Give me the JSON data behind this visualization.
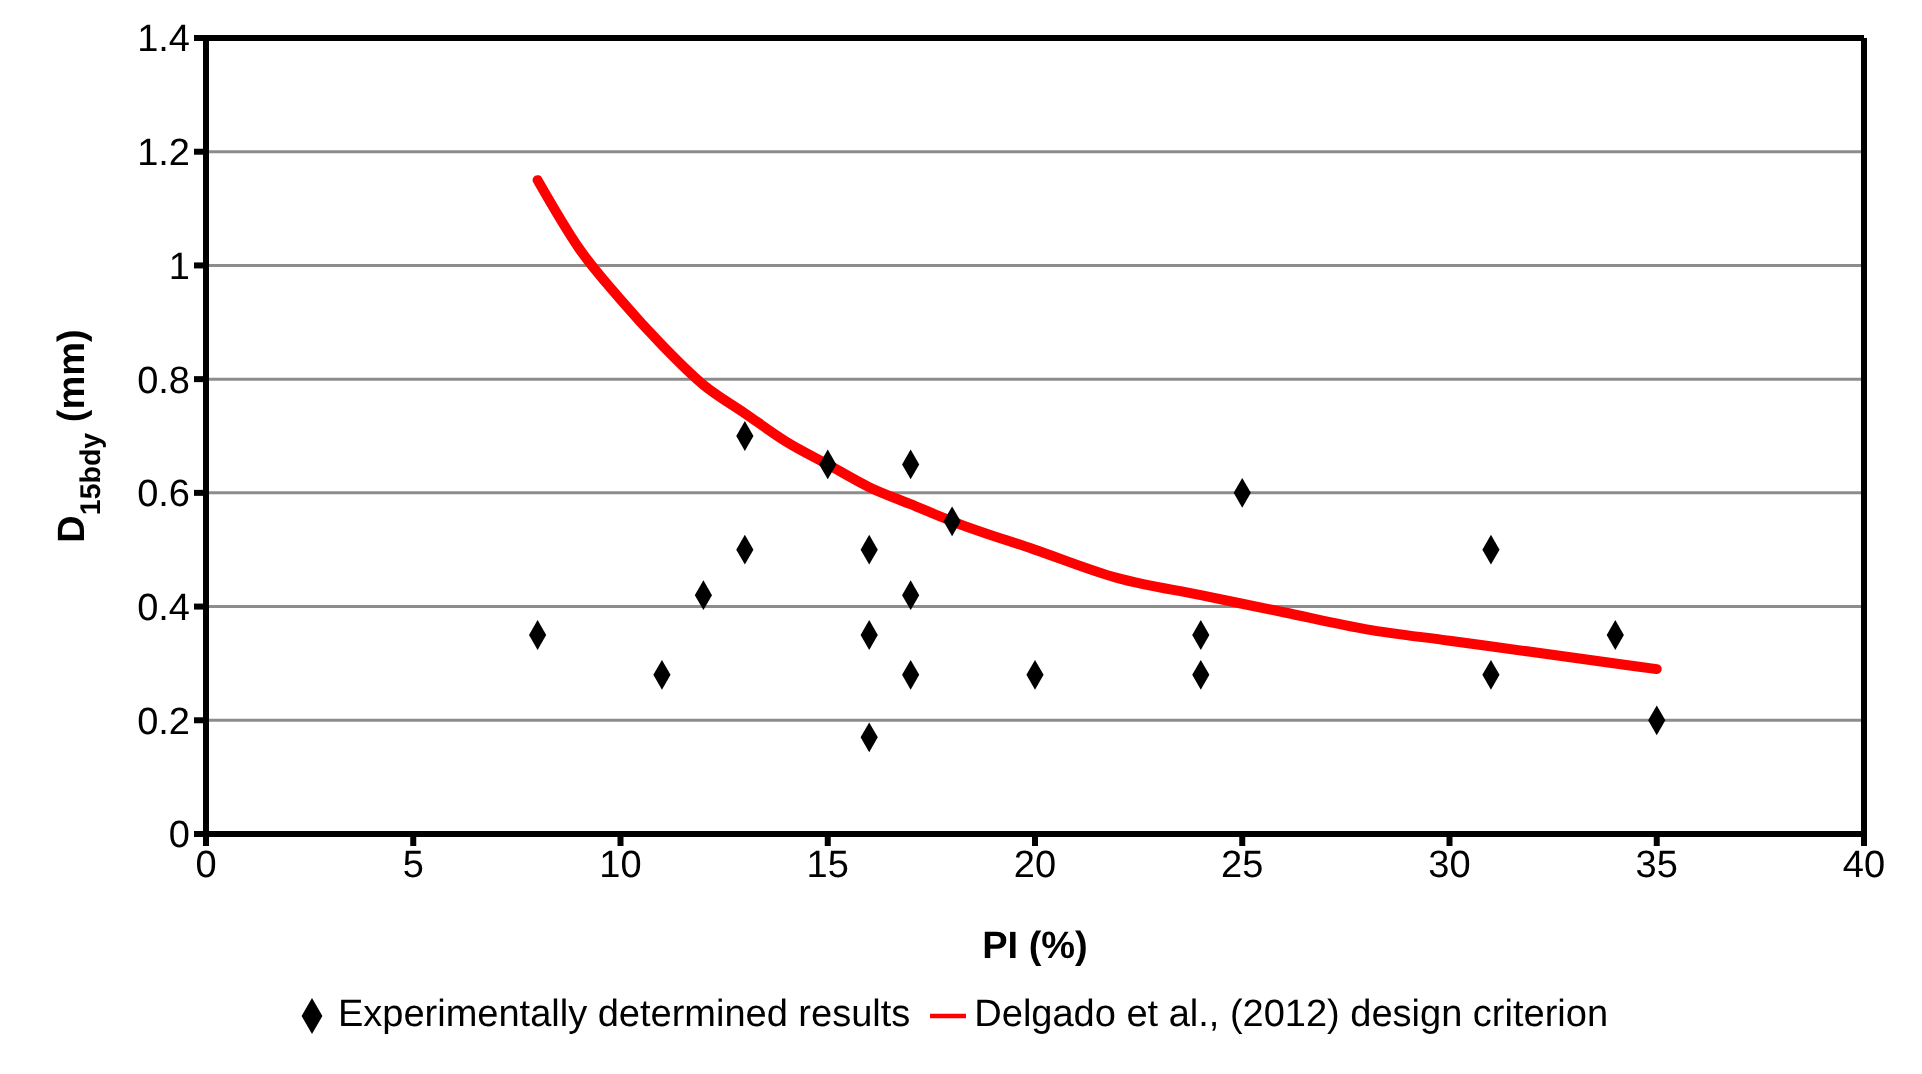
{
  "chart_data": {
    "type": "scatter",
    "xlabel": "PI (%)",
    "ylabel": "D$_{15bdy}$ (mm)",
    "xlim": [
      0,
      40
    ],
    "xticks": [
      0,
      5,
      10,
      15,
      20,
      25,
      30,
      35,
      40
    ],
    "ylim": [
      0,
      1.4
    ],
    "yticks": [
      0,
      0.2,
      0.4,
      0.6,
      0.8,
      1,
      1.2,
      1.4
    ],
    "grid": "y",
    "legend": "bottom",
    "series": [
      {
        "name": "Experimentally determined results",
        "marker": "diamond",
        "color": "#000000",
        "x": [
          8,
          11,
          12,
          13,
          13,
          15,
          16,
          16,
          16,
          17,
          17,
          17,
          18,
          20,
          24,
          24,
          25,
          31,
          31,
          34,
          35
        ],
        "values": [
          0.35,
          0.28,
          0.42,
          0.7,
          0.5,
          0.65,
          0.5,
          0.35,
          0.17,
          0.65,
          0.42,
          0.28,
          0.55,
          0.28,
          0.35,
          0.28,
          0.6,
          0.5,
          0.28,
          0.35,
          0.2
        ]
      },
      {
        "name": "Delgado et al., (2012) design criterion",
        "type": "line",
        "marker": "none",
        "line_style": "solid",
        "color": "#ff0000",
        "x": [
          8,
          9,
          10,
          11,
          12,
          13,
          14,
          15,
          16,
          17,
          18,
          20,
          22,
          24,
          26,
          28,
          30,
          32,
          34,
          35
        ],
        "values": [
          1.15,
          1.03,
          0.94,
          0.86,
          0.79,
          0.74,
          0.69,
          0.65,
          0.61,
          0.58,
          0.55,
          0.5,
          0.45,
          0.42,
          0.39,
          0.36,
          0.34,
          0.32,
          0.3,
          0.29
        ]
      }
    ]
  }
}
